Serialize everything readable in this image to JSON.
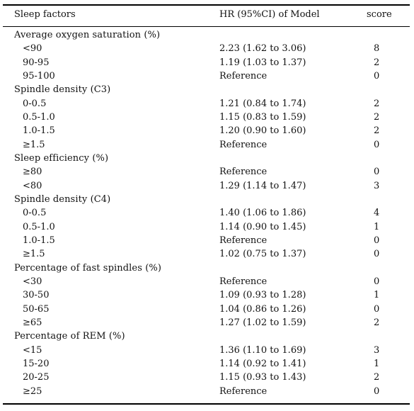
{
  "header": {
    "col1": "Sleep factors",
    "col2": "HR (95%CI) of Model",
    "col3": "score"
  },
  "rows": [
    {
      "type": "group",
      "label": "Average oxygen saturation (%)"
    },
    {
      "type": "item",
      "label": "<90",
      "hr": "2.23 (1.62 to 3.06)",
      "score": "8"
    },
    {
      "type": "item",
      "label": "90-95",
      "hr": "1.19 (1.03 to 1.37)",
      "score": "2"
    },
    {
      "type": "item",
      "label": "95-100",
      "hr": "Reference",
      "score": "0"
    },
    {
      "type": "group",
      "label": "Spindle density (C3)"
    },
    {
      "type": "item",
      "label": "0-0.5",
      "hr": "1.21 (0.84 to 1.74)",
      "score": "2"
    },
    {
      "type": "item",
      "label": "0.5-1.0",
      "hr": "1.15 (0.83 to 1.59)",
      "score": "2"
    },
    {
      "type": "item",
      "label": "1.0-1.5",
      "hr": "1.20 (0.90 to 1.60)",
      "score": "2"
    },
    {
      "type": "item",
      "label": "≥1.5",
      "hr": "Reference",
      "score": "0"
    },
    {
      "type": "group",
      "label": "Sleep efficiency (%)"
    },
    {
      "type": "item",
      "label": "≥80",
      "hr": "Reference",
      "score": "0"
    },
    {
      "type": "item",
      "label": "<80",
      "hr": "1.29 (1.14 to 1.47)",
      "score": "3"
    },
    {
      "type": "group",
      "label": "Spindle density (C4)"
    },
    {
      "type": "item",
      "label": "0-0.5",
      "hr": "1.40 (1.06 to 1.86)",
      "score": "4"
    },
    {
      "type": "item",
      "label": "0.5-1.0",
      "hr": "1.14 (0.90 to 1.45)",
      "score": "1"
    },
    {
      "type": "item",
      "label": "1.0-1.5",
      "hr": "Reference",
      "score": "0"
    },
    {
      "type": "item",
      "label": "≥1.5",
      "hr": "1.02 (0.75 to 1.37)",
      "score": "0"
    },
    {
      "type": "group",
      "label": "Percentage of fast spindles (%)"
    },
    {
      "type": "item",
      "label": "<30",
      "hr": "Reference",
      "score": "0"
    },
    {
      "type": "item",
      "label": "30-50",
      "hr": "1.09 (0.93 to 1.28)",
      "score": "1"
    },
    {
      "type": "item",
      "label": "50-65",
      "hr": "1.04 (0.86 to 1.26)",
      "score": "0"
    },
    {
      "type": "item",
      "label": "≥65",
      "hr": "1.27 (1.02 to 1.59)",
      "score": "2"
    },
    {
      "type": "group",
      "label": "Percentage of REM (%)"
    },
    {
      "type": "item",
      "label": "<15",
      "hr": "1.36 (1.10 to 1.69)",
      "score": "3"
    },
    {
      "type": "item",
      "label": "15-20",
      "hr": "1.14 (0.92 to 1.41)",
      "score": "1"
    },
    {
      "type": "item",
      "label": "20-25",
      "hr": "1.15 (0.93 to 1.43)",
      "score": "2"
    },
    {
      "type": "item",
      "label": "≥25",
      "hr": "Reference",
      "score": "0"
    }
  ]
}
